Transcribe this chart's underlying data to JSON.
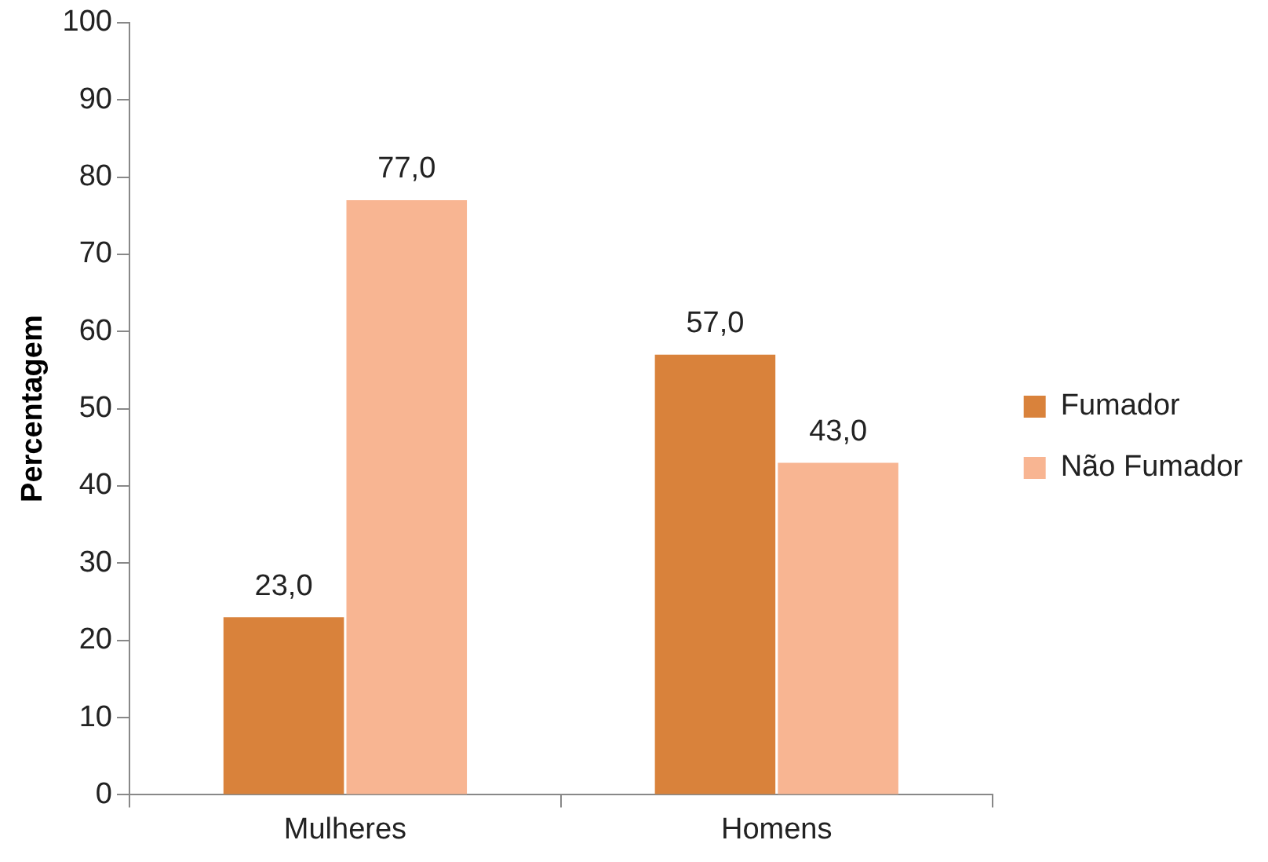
{
  "chart_data": {
    "type": "bar",
    "ylabel": "Percentagem",
    "categories": [
      "Mulheres",
      "Homens"
    ],
    "series": [
      {
        "name": "Fumador",
        "color": "#d9823b",
        "values": [
          23,
          57
        ],
        "value_labels": [
          "23,0",
          "57,0"
        ]
      },
      {
        "name": "Não Fumador",
        "color": "#f8b592",
        "values": [
          77,
          43
        ],
        "value_labels": [
          "77,0",
          "43,0"
        ]
      }
    ],
    "ylim": [
      0,
      100
    ],
    "yticks": [
      0,
      10,
      20,
      30,
      40,
      50,
      60,
      70,
      80,
      90,
      100
    ],
    "grid": false,
    "legend": "right"
  }
}
